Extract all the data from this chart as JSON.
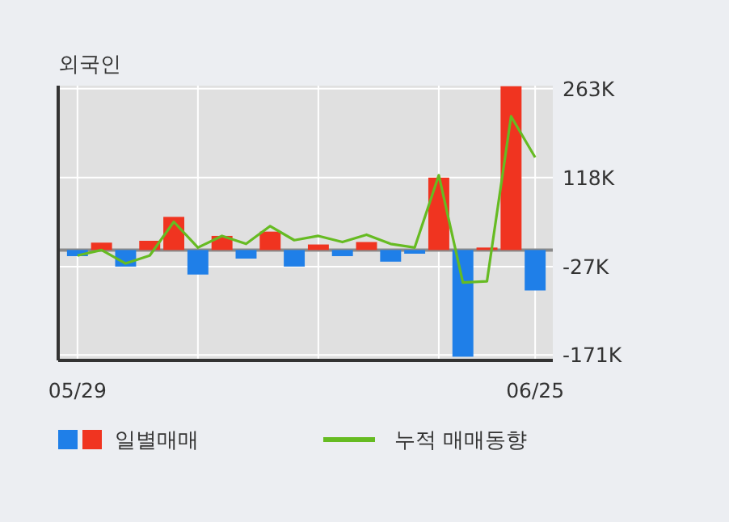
{
  "chart_data": {
    "type": "bar",
    "title": "외국인",
    "categories": [
      "05/29",
      null,
      null,
      null,
      null,
      null,
      null,
      null,
      null,
      null,
      null,
      null,
      null,
      null,
      null,
      null,
      null,
      null,
      null,
      "06/25"
    ],
    "series": [
      {
        "name": "일별매매",
        "colors": [
          "#1f7fe8",
          "#f03420",
          "#1f7fe8",
          "#f03420",
          "#f03420",
          "#1f7fe8",
          "#f03420",
          "#1f7fe8",
          "#f03420",
          "#1f7fe8",
          "#f03420",
          "#1f7fe8",
          "#f03420",
          "#1f7fe8",
          "#1f7fe8",
          "#f03420",
          "#1f7fe8",
          "#f03420",
          "#f03420",
          "#1f7fe8"
        ],
        "values": [
          -10,
          12,
          -27,
          15,
          54,
          -40,
          23,
          -14,
          30,
          -27,
          9,
          -10,
          13,
          -19,
          -6,
          118,
          -174,
          4,
          267,
          -66
        ]
      },
      {
        "type": "line",
        "name": "누적 매매동향",
        "color": "#66bb22",
        "values": [
          -9,
          0,
          -22,
          -9,
          46,
          4,
          23,
          10,
          39,
          16,
          23,
          13,
          25,
          10,
          4,
          122,
          -53,
          -51,
          218,
          151
        ]
      }
    ],
    "ylim": [
      -180,
      268
    ],
    "yticks": [
      {
        "value": 263,
        "label": "263K"
      },
      {
        "value": 118,
        "label": "118K"
      },
      {
        "value": -27,
        "label": "-27K"
      },
      {
        "value": -171,
        "label": "-171K"
      }
    ],
    "grid": true,
    "legend": "bottom"
  }
}
